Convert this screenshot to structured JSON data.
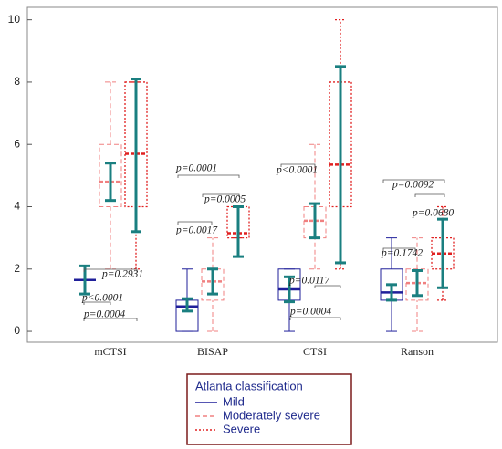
{
  "chart_data": {
    "type": "box",
    "categories": [
      "mCTSI",
      "BISAP",
      "CTSI",
      "Ranson"
    ],
    "ylim": [
      -0.35,
      10.4
    ],
    "yticks": [
      0,
      2,
      4,
      6,
      8,
      10
    ],
    "mean_color": "#1a7f80",
    "legend_title": "Atlanta classification",
    "series": [
      {
        "name": "Mild",
        "color": "#1f1f9a",
        "dash": "solid",
        "stats": [
          {
            "min": 1.65,
            "q1": 1.65,
            "median": 1.65,
            "q3": 1.65,
            "max": 1.65,
            "mean": 1.65,
            "sd": 0.45
          },
          {
            "min": 0,
            "q1": 0,
            "median": 0.8,
            "q3": 1,
            "max": 2,
            "mean": 0.85,
            "sd": 0.2
          },
          {
            "min": 0,
            "q1": 1,
            "median": 1.35,
            "q3": 2,
            "max": 2,
            "mean": 1.35,
            "sd": 0.4
          },
          {
            "min": 0,
            "q1": 1,
            "median": 1.25,
            "q3": 2,
            "max": 3,
            "mean": 1.25,
            "sd": 0.25
          }
        ]
      },
      {
        "name": "Moderately severe",
        "color": "#f08080",
        "dash": "dashed",
        "stats": [
          {
            "min": 2,
            "q1": 4,
            "median": 4.8,
            "q3": 6,
            "max": 8,
            "mean": 4.8,
            "sd": 0.6
          },
          {
            "min": 0,
            "q1": 1,
            "median": 1.6,
            "q3": 2,
            "max": 3,
            "mean": 1.6,
            "sd": 0.4
          },
          {
            "min": 2,
            "q1": 3,
            "median": 3.55,
            "q3": 4,
            "max": 6,
            "mean": 3.55,
            "sd": 0.55
          },
          {
            "min": 0,
            "q1": 1,
            "median": 1.55,
            "q3": 2,
            "max": 3,
            "mean": 1.55,
            "sd": 0.4
          }
        ]
      },
      {
        "name": "Severe",
        "color": "#e02020",
        "dash": "dotted",
        "stats": [
          {
            "min": 2,
            "q1": 4,
            "median": 5.7,
            "q3": 8,
            "max": 8,
            "mean": 5.65,
            "sd": 2.45
          },
          {
            "min": 3,
            "q1": 3,
            "median": 3.15,
            "q3": 4,
            "max": 4,
            "mean": 3.2,
            "sd": 0.8
          },
          {
            "min": 2,
            "q1": 4,
            "median": 5.35,
            "q3": 8,
            "max": 10,
            "mean": 5.35,
            "sd": 3.15
          },
          {
            "min": 1,
            "q1": 2,
            "median": 2.5,
            "q3": 3,
            "max": 4,
            "mean": 2.5,
            "sd": 1.1
          }
        ]
      }
    ],
    "annotations": [
      "p=0.2931",
      "p<0.0001",
      "p=0.0004",
      "p=0.0001",
      "p=0.0005",
      "p=0.0017",
      "p<0.0001",
      "p=0.0117",
      "p=0.0004",
      "p=0.0092",
      "p=0.0680",
      "p=0.1742"
    ]
  }
}
